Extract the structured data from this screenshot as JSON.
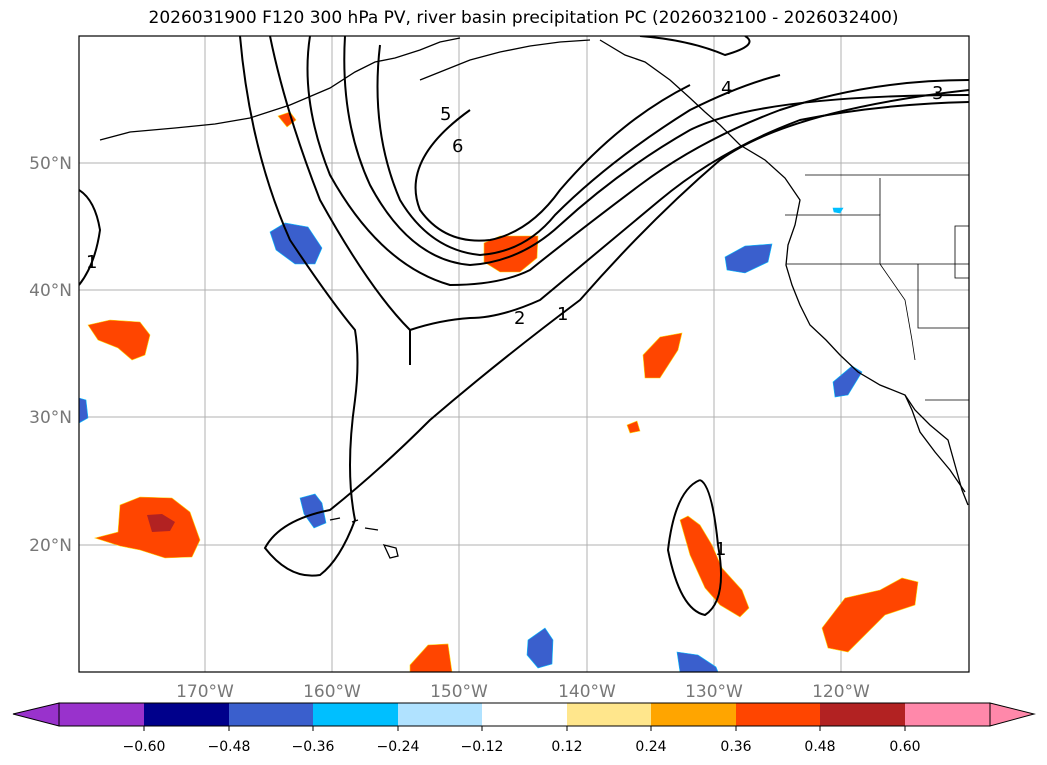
{
  "title": "2026031900 F120 300 hPa PV, river basin precipitation PC (2026032100 - 2026032400)",
  "map": {
    "lon_labels": [
      "170°W",
      "160°W",
      "150°W",
      "140°W",
      "130°W",
      "120°W"
    ],
    "lat_labels": [
      "50°N",
      "40°N",
      "30°N",
      "20°N"
    ],
    "contour_labels": [
      "1",
      "2",
      "3",
      "4",
      "5",
      "6",
      "1",
      "1"
    ]
  },
  "colorbar": {
    "ticks": [
      "−0.60",
      "−0.48",
      "−0.36",
      "−0.24",
      "−0.12",
      "0.12",
      "0.24",
      "0.36",
      "0.48",
      "0.60"
    ],
    "colors": [
      "#9932cc",
      "#00008b",
      "#3a5fcd",
      "#00bfff",
      "#b0e2ff",
      "#ffffff",
      "#ffe68c",
      "#ffa500",
      "#ff4500",
      "#b22222",
      "#ff88aa"
    ]
  }
}
